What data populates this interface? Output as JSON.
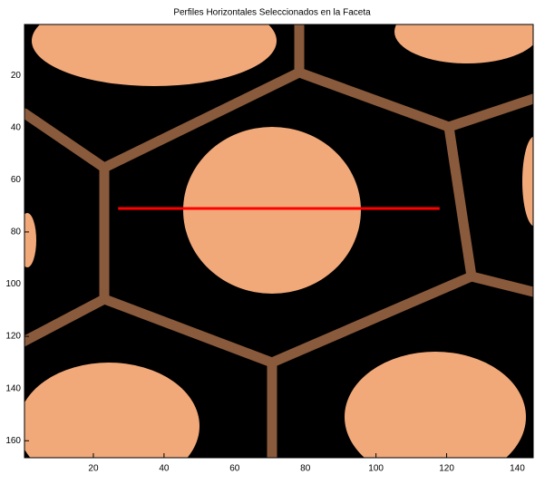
{
  "chart_data": {
    "type": "line",
    "title": "Perfiles Horizontales Seleccionados en la Faceta",
    "series": [
      {
        "x": [
          27,
          118
        ],
        "values": [
          71,
          71
        ],
        "color": "#ff0000"
      }
    ],
    "xlim": [
      0.5,
      144.5
    ],
    "ylim": [
      166.5,
      0.5
    ],
    "xticks": [
      20,
      40,
      60,
      80,
      100,
      120,
      140
    ],
    "yticks": [
      20,
      40,
      60,
      80,
      100,
      120,
      140,
      160
    ]
  }
}
